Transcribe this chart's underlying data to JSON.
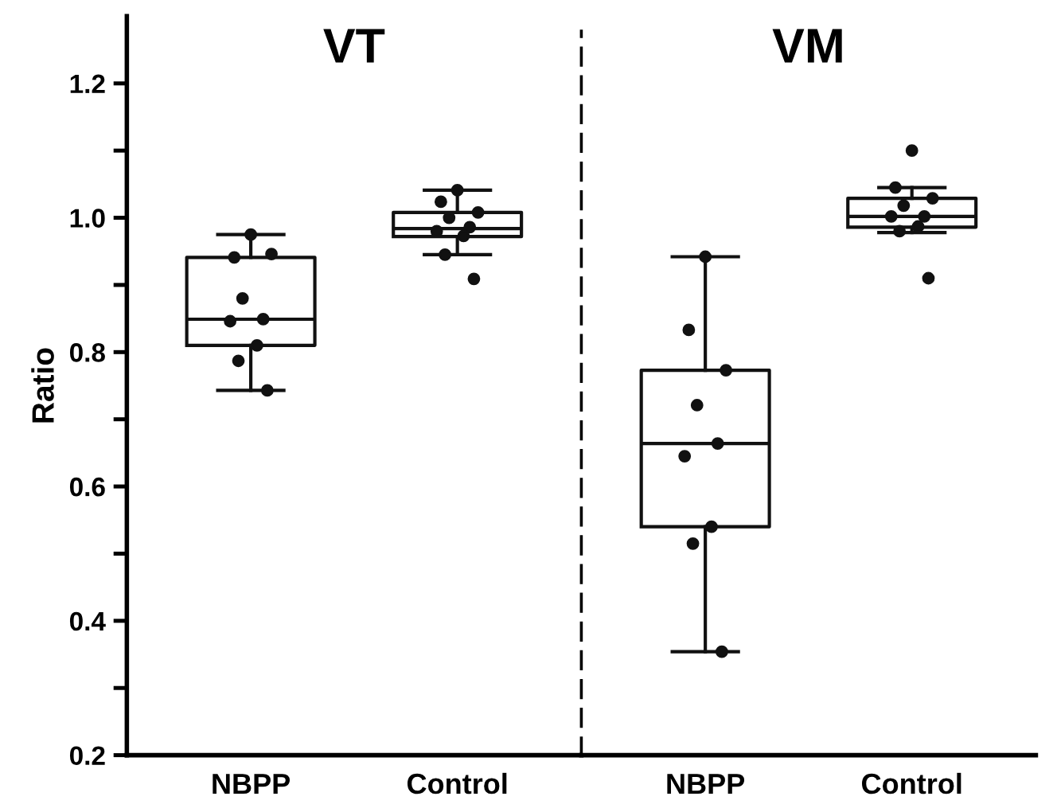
{
  "chart_data": [
    {
      "type": "box",
      "title": "VT",
      "ylabel": "Ratio",
      "categories": [
        "NBPP",
        "Control"
      ],
      "boxes": [
        {
          "low": 0.743,
          "q1": 0.81,
          "median": 0.849,
          "q3": 0.941,
          "high": 0.975
        },
        {
          "low": 0.945,
          "q1": 0.972,
          "median": 0.984,
          "q3": 1.008,
          "high": 1.041
        }
      ],
      "series": [
        {
          "type": "scatter",
          "color": "#111111",
          "marker": "circle",
          "x": [
            "NBPP",
            "NBPP",
            "NBPP",
            "NBPP",
            "NBPP",
            "NBPP",
            "NBPP",
            "NBPP",
            "NBPP",
            "Control",
            "Control",
            "Control",
            "Control",
            "Control",
            "Control",
            "Control",
            "Control",
            "Control"
          ],
          "values": [
            0.975,
            0.941,
            0.946,
            0.88,
            0.849,
            0.846,
            0.81,
            0.787,
            0.743,
            1.041,
            1.024,
            1.008,
            1.0,
            0.986,
            0.98,
            0.973,
            0.945,
            0.909
          ]
        }
      ],
      "ylim": [
        0.2,
        1.3
      ],
      "yticks": [
        0.2,
        {
          "value": 0.3,
          "label": null
        },
        0.4,
        {
          "value": 0.5,
          "label": null
        },
        0.6,
        {
          "value": 0.7,
          "label": null
        },
        0.8,
        {
          "value": 0.9,
          "label": null
        },
        {
          "value": 1.0,
          "label": "1.0"
        },
        {
          "value": 1.1,
          "label": null
        },
        1.2
      ],
      "grid": false,
      "legend": false
    },
    {
      "type": "box",
      "title": "VM",
      "categories": [
        "NBPP",
        "Control"
      ],
      "boxes": [
        {
          "low": 0.354,
          "q1": 0.54,
          "median": 0.664,
          "q3": 0.773,
          "high": 0.942
        },
        {
          "low": 0.978,
          "q1": 0.986,
          "median": 1.002,
          "q3": 1.029,
          "high": 1.045
        }
      ],
      "series": [
        {
          "type": "scatter",
          "color": "#111111",
          "marker": "circle",
          "x": [
            "NBPP",
            "NBPP",
            "NBPP",
            "NBPP",
            "NBPP",
            "NBPP",
            "NBPP",
            "NBPP",
            "NBPP",
            "Control",
            "Control",
            "Control",
            "Control",
            "Control",
            "Control",
            "Control",
            "Control",
            "Control"
          ],
          "values": [
            0.942,
            0.833,
            0.773,
            0.721,
            0.664,
            0.645,
            0.54,
            0.515,
            0.354,
            1.1,
            1.045,
            1.029,
            1.018,
            1.002,
            1.002,
            0.987,
            0.98,
            0.91
          ]
        }
      ],
      "ylim": [
        0.2,
        1.3
      ],
      "tick_labels": "x",
      "grid": false,
      "legend": false
    }
  ]
}
